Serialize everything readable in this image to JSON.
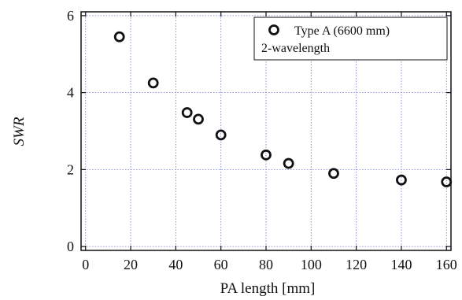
{
  "chart_data": {
    "type": "scatter",
    "xlabel": "PA length [mm]",
    "ylabel": "SWR",
    "xlim": [
      -2,
      162
    ],
    "ylim": [
      -0.1,
      6.1
    ],
    "xticks": [
      0,
      20,
      40,
      60,
      80,
      100,
      120,
      140,
      160
    ],
    "yticks": [
      0,
      2,
      4,
      6
    ],
    "grid": true,
    "legend_position": "top-right",
    "series": [
      {
        "name": "Type A (6600 mm)",
        "marker": "open-circle",
        "color": "#111111",
        "x": [
          15,
          30,
          45,
          50,
          60,
          80,
          90,
          110,
          140,
          160
        ],
        "y": [
          5.45,
          4.25,
          3.48,
          3.31,
          2.9,
          2.38,
          2.16,
          1.9,
          1.73,
          1.68
        ]
      }
    ],
    "legend_sublabel": "2-wavelength"
  }
}
